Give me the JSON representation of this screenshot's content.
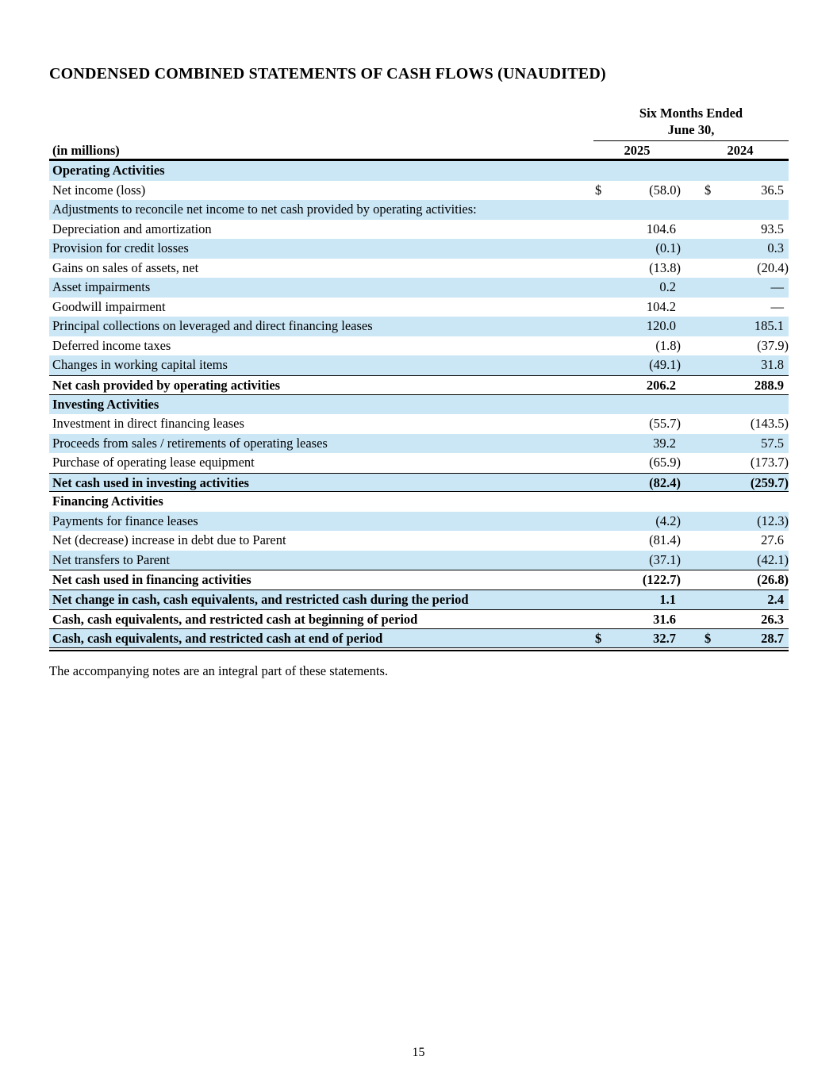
{
  "page": {
    "title": "CONDENSED COMBINED STATEMENTS OF CASH FLOWS (UNAUDITED)",
    "footnote": "The accompanying notes are an integral part of these statements.",
    "page_number": "15"
  },
  "table": {
    "period_line1": "Six Months Ended",
    "period_line2": "June 30,",
    "in_millions": "(in millions)",
    "columns": [
      "2025",
      "2024"
    ],
    "colors": {
      "row_highlight": "#cbe7f6",
      "rule": "#000000"
    },
    "rows": [
      {
        "label": "Operating Activities",
        "v1": "",
        "v2": "",
        "shaded": true,
        "bold": true
      },
      {
        "label": "Net income (loss)",
        "cur1": "$",
        "v1": "(58.0)",
        "cur2": "$",
        "v2": "36.5"
      },
      {
        "label": "Adjustments to reconcile net income to net cash provided by operating activities:",
        "v1": "",
        "v2": "",
        "shaded": true
      },
      {
        "label": "Depreciation and amortization",
        "v1": "104.6",
        "v2": "93.5"
      },
      {
        "label": "Provision for credit losses",
        "v1": "(0.1)",
        "v2": "0.3",
        "shaded": true
      },
      {
        "label": "Gains on sales of assets, net",
        "v1": "(13.8)",
        "v2": "(20.4)"
      },
      {
        "label": "Asset impairments",
        "v1": "0.2",
        "v2": "—",
        "shaded": true
      },
      {
        "label": "Goodwill impairment",
        "v1": "104.2",
        "v2": "—"
      },
      {
        "label": "Principal collections on leveraged and direct financing leases",
        "v1": "120.0",
        "v2": "185.1",
        "shaded": true
      },
      {
        "label": "Deferred income taxes",
        "v1": "(1.8)",
        "v2": "(37.9)"
      },
      {
        "label": "Changes in working capital items",
        "v1": "(49.1)",
        "v2": "31.8",
        "shaded": true
      },
      {
        "label": "Net cash provided by operating activities",
        "v1": "206.2",
        "v2": "288.9",
        "bold": true,
        "bt": true,
        "bb": true
      },
      {
        "label": "Investing Activities",
        "v1": "",
        "v2": "",
        "shaded": true,
        "bold": true
      },
      {
        "label": "Investment in direct financing leases",
        "v1": "(55.7)",
        "v2": "(143.5)"
      },
      {
        "label": "Proceeds from sales / retirements of operating leases",
        "v1": "39.2",
        "v2": "57.5",
        "shaded": true
      },
      {
        "label": "Purchase of operating lease equipment",
        "v1": "(65.9)",
        "v2": "(173.7)"
      },
      {
        "label": "Net cash used in investing activities",
        "v1": "(82.4)",
        "v2": "(259.7)",
        "shaded": true,
        "bold": true,
        "bt": true,
        "bb": true
      },
      {
        "label": "Financing Activities",
        "v1": "",
        "v2": "",
        "bold": true
      },
      {
        "label": "Payments for finance leases",
        "v1": "(4.2)",
        "v2": "(12.3)",
        "shaded": true
      },
      {
        "label": "Net (decrease) increase in debt due to Parent",
        "v1": "(81.4)",
        "v2": "27.6"
      },
      {
        "label": "Net transfers to Parent",
        "v1": "(37.1)",
        "v2": "(42.1)",
        "shaded": true
      },
      {
        "label": "Net cash used in financing activities",
        "v1": "(122.7)",
        "v2": "(26.8)",
        "bold": true,
        "bt": true
      },
      {
        "label": "Net change in cash, cash equivalents, and restricted cash during the period",
        "v1": "1.1",
        "v2": "2.4",
        "shaded": true,
        "bold": true,
        "bt": true
      },
      {
        "label": "Cash, cash equivalents, and restricted cash at beginning of period",
        "v1": "31.6",
        "v2": "26.3",
        "bold": true,
        "bt": true
      },
      {
        "label": "Cash, cash equivalents, and restricted cash at end of period",
        "cur1": "$",
        "v1": "32.7",
        "cur2": "$",
        "v2": "28.7",
        "shaded": true,
        "bold": true,
        "bt": true,
        "dbl": true
      }
    ]
  }
}
